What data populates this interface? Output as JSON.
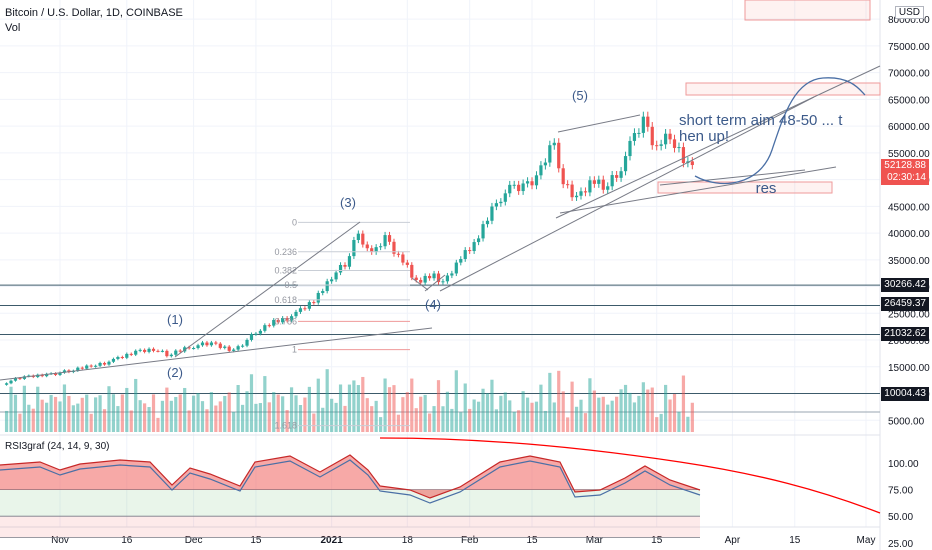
{
  "header": {
    "title": "Bitcoin / U.S. Dollar, 1D, COINBASE",
    "volume_label": "Vol",
    "currency": "USD"
  },
  "rsi_panel": {
    "label": "RSI3graf (24, 14, 9, 30)"
  },
  "price_tags": {
    "last_price": "52128.88",
    "countdown": "02:30:14",
    "levels": [
      "30266.42",
      "26459.37",
      "21032.62",
      "10004.43"
    ]
  },
  "chart_data": {
    "type": "candlestick",
    "title": "Bitcoin / U.S. Dollar, 1D, COINBASE",
    "y_ticks": [
      80000,
      75000,
      70000,
      65000,
      60000,
      55000,
      50000,
      45000,
      40000,
      35000,
      30000,
      25000,
      20000,
      15000,
      10000,
      5000
    ],
    "y_tick_labels": [
      "80000.00",
      "75000.00",
      "70000.00",
      "65000.00",
      "60000.00",
      "55000.00",
      "50000.00",
      "45000.00",
      "40000.00",
      "35000.00",
      "30000.00",
      "25000.00",
      "20000.00",
      "15000.00",
      "10000.00",
      "5000.00"
    ],
    "x_ticks": [
      "Nov",
      "16",
      "Dec",
      "15",
      "2021",
      "18",
      "Feb",
      "15",
      "Mar",
      "15",
      "Apr",
      "15",
      "May"
    ],
    "x_tick_dates": [
      "2020-11-01",
      "2020-11-16",
      "2020-12-01",
      "2020-12-15",
      "2021-01-01",
      "2021-01-18",
      "2021-02-01",
      "2021-02-15",
      "2021-03-01",
      "2021-03-15",
      "2021-04-01",
      "2021-04-15",
      "2021-05-01"
    ],
    "ylim": [
      5000,
      82000
    ],
    "horizontal_levels": [
      30266.42,
      26459.37,
      21032.62,
      10004.43
    ],
    "last_price": 52128.88,
    "close_series": [
      {
        "date": "2020-10-20",
        "close": 12000
      },
      {
        "date": "2020-10-25",
        "close": 13000
      },
      {
        "date": "2020-10-30",
        "close": 13600
      },
      {
        "date": "2020-11-04",
        "close": 14100
      },
      {
        "date": "2020-11-09",
        "close": 15300
      },
      {
        "date": "2020-11-14",
        "close": 16100
      },
      {
        "date": "2020-11-19",
        "close": 17800
      },
      {
        "date": "2020-11-23",
        "close": 18400
      },
      {
        "date": "2020-11-26",
        "close": 17100
      },
      {
        "date": "2020-12-01",
        "close": 18900
      },
      {
        "date": "2020-12-06",
        "close": 19200
      },
      {
        "date": "2020-12-11",
        "close": 18100
      },
      {
        "date": "2020-12-16",
        "close": 21300
      },
      {
        "date": "2020-12-20",
        "close": 23500
      },
      {
        "date": "2020-12-25",
        "close": 24700
      },
      {
        "date": "2020-12-29",
        "close": 27300
      },
      {
        "date": "2021-01-02",
        "close": 32000
      },
      {
        "date": "2021-01-05",
        "close": 33900
      },
      {
        "date": "2021-01-08",
        "close": 40500
      },
      {
        "date": "2021-01-11",
        "close": 35500
      },
      {
        "date": "2021-01-14",
        "close": 39200
      },
      {
        "date": "2021-01-17",
        "close": 36000
      },
      {
        "date": "2021-01-21",
        "close": 30800
      },
      {
        "date": "2021-01-24",
        "close": 32300
      },
      {
        "date": "2021-01-27",
        "close": 30400
      },
      {
        "date": "2021-01-30",
        "close": 34300
      },
      {
        "date": "2021-02-03",
        "close": 37700
      },
      {
        "date": "2021-02-08",
        "close": 46500
      },
      {
        "date": "2021-02-11",
        "close": 47900
      },
      {
        "date": "2021-02-14",
        "close": 48700
      },
      {
        "date": "2021-02-18",
        "close": 51500
      },
      {
        "date": "2021-02-21",
        "close": 57500
      },
      {
        "date": "2021-02-23",
        "close": 48800
      },
      {
        "date": "2021-02-26",
        "close": 46100
      },
      {
        "date": "2021-03-01",
        "close": 49600
      },
      {
        "date": "2021-03-04",
        "close": 48400
      },
      {
        "date": "2021-03-07",
        "close": 51200
      },
      {
        "date": "2021-03-10",
        "close": 56000
      },
      {
        "date": "2021-03-13",
        "close": 61100
      },
      {
        "date": "2021-03-16",
        "close": 56300
      },
      {
        "date": "2021-03-19",
        "close": 58200
      },
      {
        "date": "2021-03-22",
        "close": 54500
      },
      {
        "date": "2021-03-23",
        "close": 52100
      }
    ],
    "annotations": [
      {
        "text": "(1)",
        "date": "2020-11-25",
        "price": 21000
      },
      {
        "text": "(2)",
        "date": "2020-11-25",
        "price": 13000
      },
      {
        "text": "(3)",
        "date": "2021-01-08",
        "price": 43500
      },
      {
        "text": "(4)",
        "date": "2021-01-27",
        "price": 25000
      },
      {
        "text": "(5)",
        "date": "2021-02-21",
        "price": 63000
      },
      {
        "text": "short term aim 48-50 ... then up!",
        "date": "2021-03-12",
        "price": 59000
      },
      {
        "text": "res",
        "date": "2021-04-03",
        "price": 46500
      }
    ],
    "fib_levels": [
      {
        "label": "0",
        "price": 42000
      },
      {
        "label": "0.236",
        "price": 36500
      },
      {
        "label": "0.382",
        "price": 33000
      },
      {
        "label": "0.5",
        "price": 30300
      },
      {
        "label": "0.618",
        "price": 27500
      },
      {
        "label": "0.786",
        "price": 23500
      },
      {
        "label": "1",
        "price": 18200
      },
      {
        "label": "1.618",
        "price": 4000
      }
    ],
    "rsi_ticks": [
      100,
      75,
      50,
      25
    ],
    "rsi_tick_labels": [
      "100.00",
      "75.00",
      "50.00",
      "25.00"
    ],
    "colors": {
      "up": "#26a69a",
      "down": "#ef5350",
      "trendline": "#787b86",
      "projection": "#4a6fa5",
      "annotation": "#3c5a8a",
      "rsi_line": "#ff0000"
    }
  }
}
